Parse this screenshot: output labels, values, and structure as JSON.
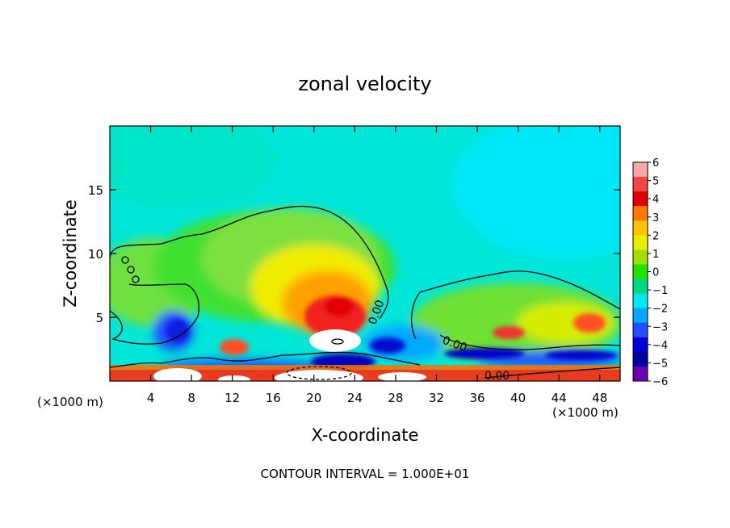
{
  "chart_data": {
    "type": "heatmap",
    "title": "zonal velocity",
    "xlabel": "X-coordinate",
    "ylabel": "Z-coordinate",
    "x_unit": "(×1000 m)",
    "x_unit_right": "(×1000 m)",
    "xlim": [
      0,
      50
    ],
    "ylim": [
      0,
      20
    ],
    "x_ticks": [
      4,
      8,
      12,
      16,
      20,
      24,
      28,
      32,
      36,
      40,
      44,
      48
    ],
    "y_ticks": [
      5,
      10,
      15
    ],
    "colorbar": {
      "levels": [
        6,
        5,
        4,
        3,
        2,
        1,
        0,
        -1,
        -2,
        -3,
        -4,
        -5,
        -6
      ],
      "labels": [
        "6",
        "5",
        "4",
        "3",
        "2",
        "1",
        "0",
        "−1",
        "−2",
        "−3",
        "−4",
        "−5",
        "−6"
      ],
      "colors": [
        "#f5a6a6",
        "#f04646",
        "#e00000",
        "#ff7800",
        "#ffc400",
        "#e8f000",
        "#a0e000",
        "#20e000",
        "#00d880",
        "#00e8f0",
        "#00a8ff",
        "#1e50ff",
        "#0000d8",
        "#0000a0",
        "#6a00b0"
      ]
    },
    "contour_labels": [
      "0.00",
      "0.00",
      "0.00"
    ],
    "contour_interval": "CONTOUR INTERVAL = 1.000E+01"
  }
}
